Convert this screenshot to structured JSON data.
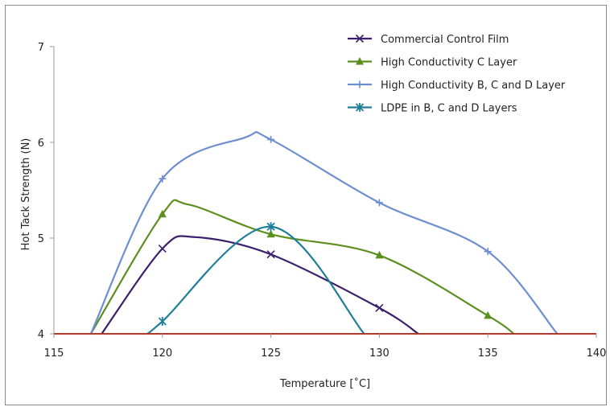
{
  "chart_data": {
    "type": "line",
    "title": "",
    "xlabel": "Temperature [˚C]",
    "ylabel": "Hot Tack Strength (N)",
    "xlim": [
      115,
      140
    ],
    "ylim": [
      4,
      7
    ],
    "x_ticks": [
      "115",
      "120",
      "125",
      "130",
      "135",
      "140"
    ],
    "y_ticks": [
      "4",
      "5",
      "6",
      "7"
    ],
    "baseline": {
      "y": 4,
      "color": "#b03a2e"
    },
    "legend_position": "top-right",
    "series": [
      {
        "name": "Commercial Control Film",
        "color": "#3b1f6b",
        "marker": "x",
        "points": [
          [
            117.2,
            4.0
          ],
          [
            120,
            4.89
          ],
          [
            121.5,
            5.01
          ],
          [
            125,
            4.83
          ],
          [
            130,
            4.27
          ],
          [
            131.8,
            4.0
          ]
        ],
        "marked_x": [
          120,
          125,
          130
        ]
      },
      {
        "name": "High Conductivity C Layer",
        "color": "#5b8f1e",
        "marker": "triangle",
        "points": [
          [
            116.7,
            4.0
          ],
          [
            120,
            5.25
          ],
          [
            121.2,
            5.35
          ],
          [
            125,
            5.04
          ],
          [
            130,
            4.82
          ],
          [
            135,
            4.19
          ],
          [
            136.2,
            4.0
          ]
        ],
        "marked_x": [
          120,
          125,
          130,
          135
        ]
      },
      {
        "name": "High Conductivity B, C and D Layer",
        "color": "#6d8fd0",
        "marker": "plus",
        "points": [
          [
            116.7,
            4.0
          ],
          [
            120,
            5.62
          ],
          [
            123.8,
            6.05
          ],
          [
            125,
            6.03
          ],
          [
            130,
            5.37
          ],
          [
            135,
            4.86
          ],
          [
            138.2,
            4.0
          ]
        ],
        "marked_x": [
          120,
          125,
          130,
          135
        ]
      },
      {
        "name": "LDPE in B, C and D Layers",
        "color": "#1f7f99",
        "marker": "star",
        "points": [
          [
            119.3,
            4.0
          ],
          [
            120,
            4.13
          ],
          [
            125,
            5.12
          ],
          [
            129.3,
            4.0
          ]
        ],
        "marked_x": [
          120,
          125
        ]
      }
    ]
  }
}
